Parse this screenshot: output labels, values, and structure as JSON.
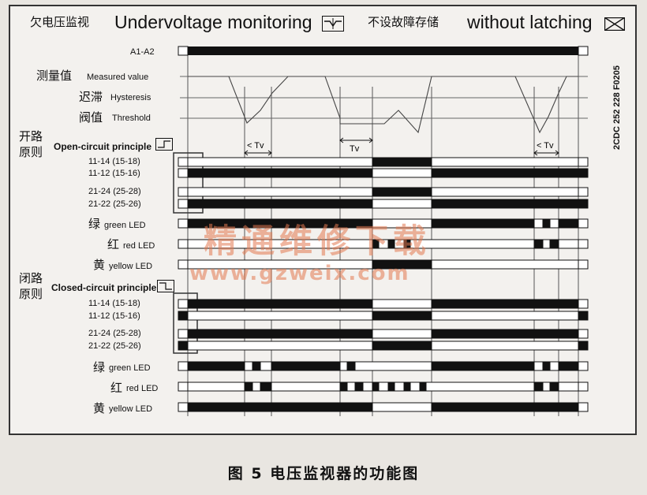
{
  "header": {
    "zh_title": "欠电压监视",
    "en_title": "Undervoltage monitoring",
    "zh_latching": "不设故障存储",
    "en_latching": "without latching"
  },
  "supply_label": "A1-A2",
  "measured": {
    "zh": "测量值",
    "en": "Measured value"
  },
  "hysteresis": {
    "zh": "迟滞",
    "en": "Hysteresis"
  },
  "threshold": {
    "zh": "阀值",
    "en": "Threshold"
  },
  "open_section": {
    "zh1": "开路",
    "zh2": "原则",
    "en": "Open-circuit principle"
  },
  "closed_section": {
    "zh1": "闭路",
    "zh2": "原则",
    "en": "Closed-circuit principle"
  },
  "contacts": [
    "11-14 (15-18)",
    "11-12 (15-16)",
    "21-24 (25-28)",
    "21-22 (25-26)"
  ],
  "leds": {
    "green": {
      "zh": "绿",
      "en": "green LED"
    },
    "red": {
      "zh": "红",
      "en": "red LED"
    },
    "yellow": {
      "zh": "黄",
      "en": "yellow LED"
    }
  },
  "tv_label": "Tv",
  "tv_less_label": "< Tv",
  "doc_code": "2CDC 252 228 F0205",
  "watermark": {
    "line1": "精通维修下载",
    "line2": "www.gzweix.com"
  },
  "caption": "图 5   电压监视器的功能图"
}
